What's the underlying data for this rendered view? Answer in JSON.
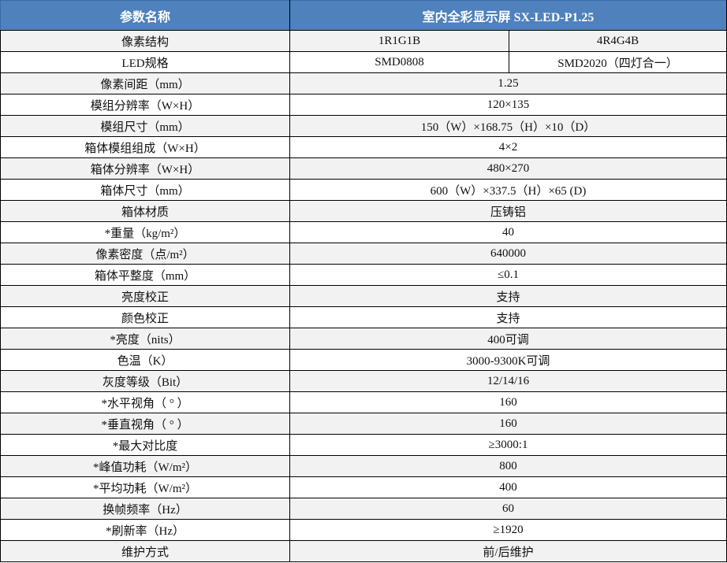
{
  "header": {
    "param_label": "参数名称",
    "product_title": "室内全彩显示屏 SX-LED-P1.25"
  },
  "colors": {
    "header_bg": "#4f81bd",
    "header_text": "#ffffff",
    "row_alt": "#f2f2f2",
    "border": "#000000"
  },
  "split_rows": [
    {
      "name": "像素结构",
      "values": [
        "1R1G1B",
        "4R4G4B"
      ]
    },
    {
      "name": "LED规格",
      "values": [
        "SMD0808",
        "SMD2020（四灯合一）"
      ]
    }
  ],
  "rows": [
    {
      "name": "像素间距（mm）",
      "value": "1.25"
    },
    {
      "name": "模组分辨率（W×H）",
      "value": "120×135"
    },
    {
      "name": "模组尺寸（mm）",
      "value": "150（W）×168.75（H）×10（D）"
    },
    {
      "name": "箱体模组组成（W×H）",
      "value": "4×2"
    },
    {
      "name": "箱体分辨率（W×H）",
      "value": "480×270"
    },
    {
      "name": "箱体尺寸（mm）",
      "value": "600（W）×337.5（H）×65 (D)"
    },
    {
      "name": "箱体材质",
      "value": "压铸铝"
    },
    {
      "name": "*重量（kg/m²）",
      "value": "40"
    },
    {
      "name": "像素密度（点/m²）",
      "value": "640000"
    },
    {
      "name": "箱体平整度（mm）",
      "value": "≤0.1"
    },
    {
      "name": "亮度校正",
      "value": "支持"
    },
    {
      "name": "颜色校正",
      "value": "支持"
    },
    {
      "name": "*亮度（nits）",
      "value": "400可调"
    },
    {
      "name": "色温（K）",
      "value": "3000-9300K可调"
    },
    {
      "name": "灰度等级（Bit）",
      "value": "12/14/16"
    },
    {
      "name": "*水平视角（ ° ）",
      "value": "160"
    },
    {
      "name": "*垂直视角（ ° ）",
      "value": "160"
    },
    {
      "name": "*最大对比度",
      "value": "≥3000:1"
    },
    {
      "name": "*峰值功耗（W/m²）",
      "value": "800"
    },
    {
      "name": "*平均功耗（W/m²）",
      "value": "400"
    },
    {
      "name": "换帧频率（Hz）",
      "value": "60"
    },
    {
      "name": "*刷新率（Hz）",
      "value": "≥1920"
    },
    {
      "name": "维护方式",
      "value": "前/后维护"
    }
  ]
}
